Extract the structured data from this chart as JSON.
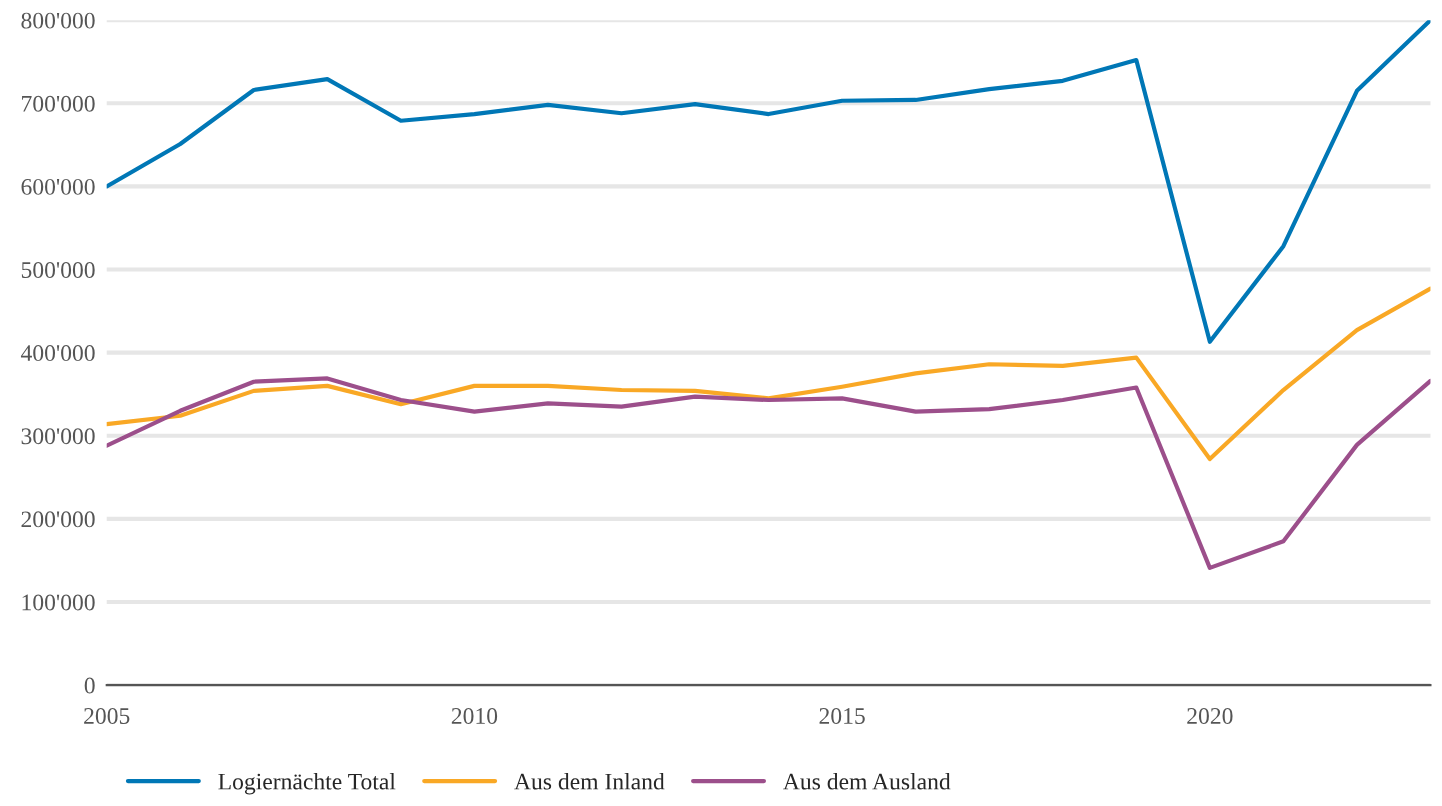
{
  "chart_data": {
    "type": "line",
    "x": [
      2005,
      2006,
      2007,
      2008,
      2009,
      2010,
      2011,
      2012,
      2013,
      2014,
      2015,
      2016,
      2017,
      2018,
      2019,
      2020,
      2021,
      2022,
      2023
    ],
    "series": [
      {
        "name": "Logiernächte Total",
        "color": "#0077b6",
        "values": [
          600000,
          651000,
          716000,
          729000,
          679000,
          687000,
          698000,
          688000,
          699000,
          687000,
          703000,
          704000,
          717000,
          727000,
          752000,
          413000,
          528000,
          715000,
          800000
        ]
      },
      {
        "name": "Aus dem Inland",
        "color": "#f9a825",
        "values": [
          314000,
          324000,
          354000,
          360000,
          338000,
          360000,
          360000,
          355000,
          354000,
          345000,
          359000,
          375000,
          386000,
          384000,
          394000,
          272000,
          355000,
          427000,
          477000
        ]
      },
      {
        "name": "Aus dem Ausland",
        "color": "#9c4f8b",
        "values": [
          288000,
          330000,
          365000,
          369000,
          343000,
          329000,
          339000,
          335000,
          347000,
          343000,
          345000,
          329000,
          332000,
          343000,
          358000,
          141000,
          173000,
          289000,
          366000
        ]
      }
    ],
    "xlim": [
      2005,
      2023
    ],
    "xticks": [
      2005,
      2010,
      2015,
      2020
    ],
    "ylim": [
      0,
      800000
    ],
    "yticks": [
      0,
      {
        "value": 100000,
        "label": "100'000"
      },
      {
        "value": 200000,
        "label": "200'000"
      },
      {
        "value": 300000,
        "label": "300'000"
      },
      {
        "value": 400000,
        "label": "400'000"
      },
      {
        "value": 500000,
        "label": "500'000"
      },
      {
        "value": 600000,
        "label": "600'000"
      },
      {
        "value": 700000,
        "label": "700'000"
      },
      {
        "value": 800000,
        "label": "800'000"
      }
    ],
    "grid": "y",
    "legend": "bottom left",
    "line_style": "solid"
  }
}
